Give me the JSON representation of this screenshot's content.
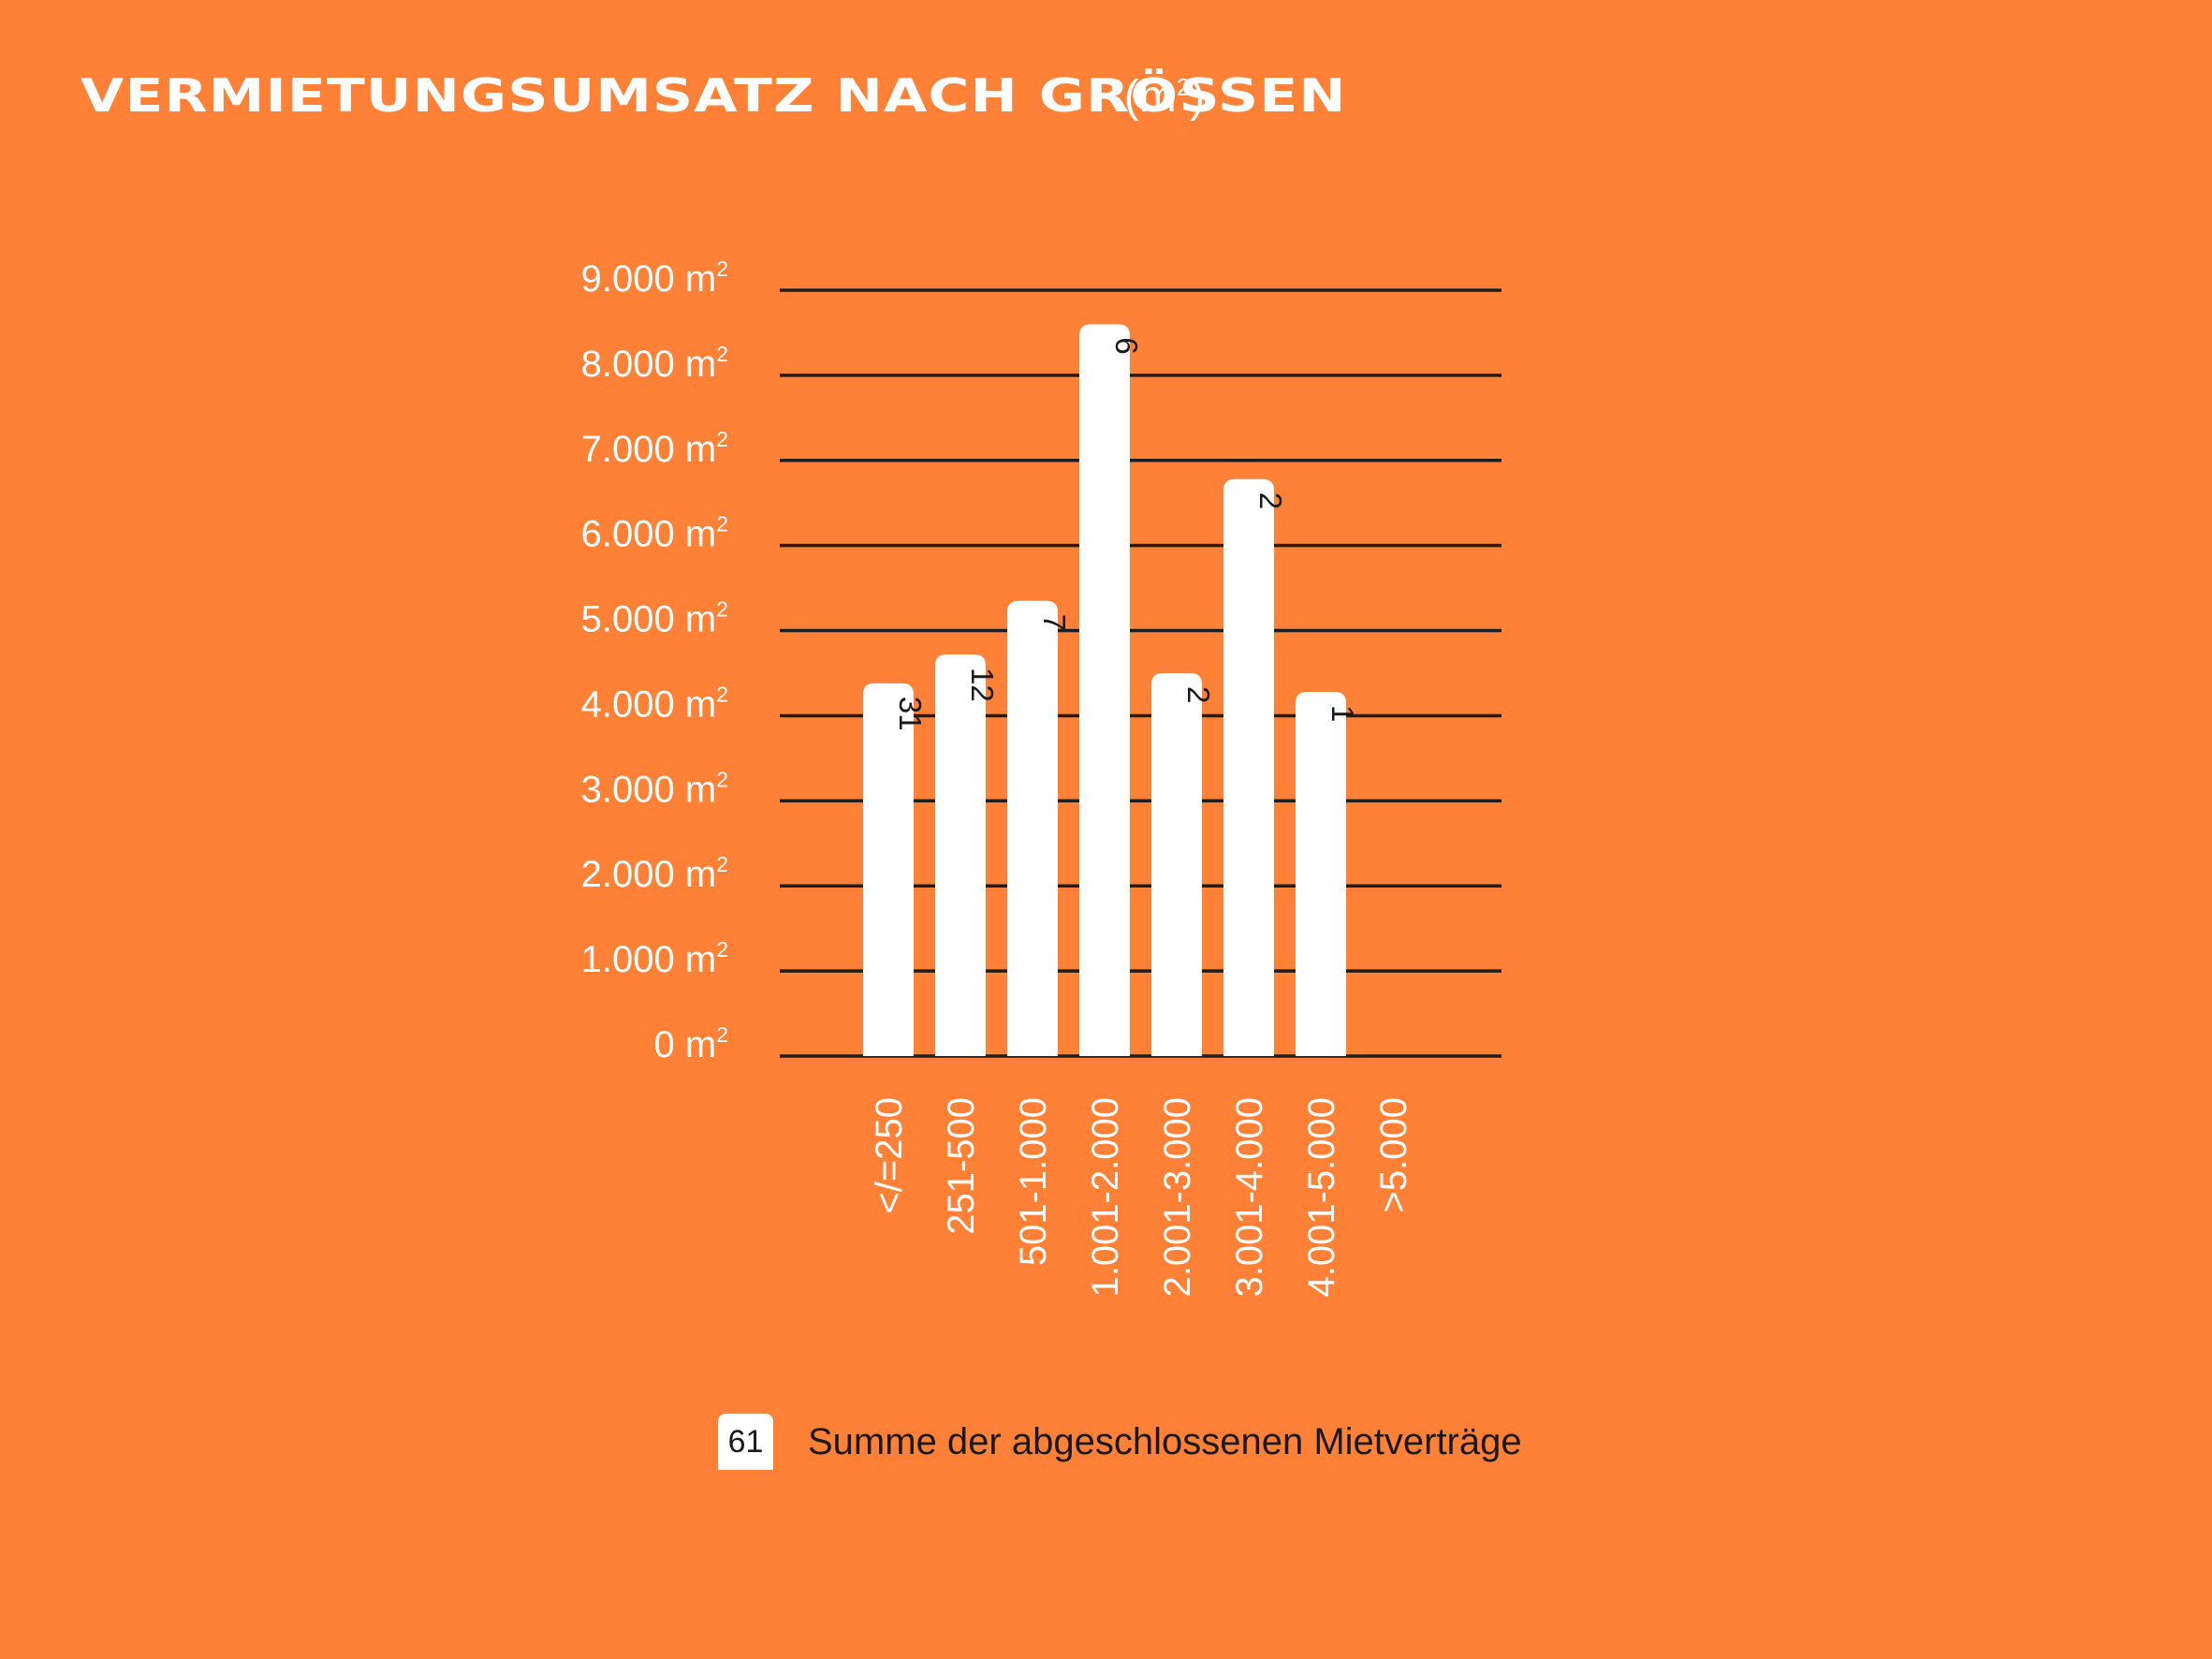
{
  "title": {
    "main": "VERMIETUNGSUMSATZ NACH GRÖSSEN",
    "unit_prefix": "(m",
    "unit_sup": "2",
    "unit_suffix": ")"
  },
  "legend": {
    "count": "61",
    "label": "Summe der abgeschlossenen Mietverträge"
  },
  "colors": {
    "background": "#ff8137",
    "bar": "#ffffff",
    "gridline": "#1e1e1e",
    "axis_text": "#ffffff",
    "dark_text": "#1a1a1a"
  },
  "chart_data": {
    "type": "bar",
    "title": "VERMIETUNGSUMSATZ NACH GRÖSSEN (m²)",
    "xlabel": "",
    "ylabel": "",
    "ylim": [
      0,
      9000
    ],
    "yticks": [
      {
        "value": 0,
        "label": "0 m",
        "sup": "2"
      },
      {
        "value": 1000,
        "label": "1.000 m",
        "sup": "2"
      },
      {
        "value": 2000,
        "label": "2.000 m",
        "sup": "2"
      },
      {
        "value": 3000,
        "label": "3.000 m",
        "sup": "2"
      },
      {
        "value": 4000,
        "label": "4.000 m",
        "sup": "2"
      },
      {
        "value": 5000,
        "label": "5.000 m",
        "sup": "2"
      },
      {
        "value": 6000,
        "label": "6.000 m",
        "sup": "2"
      },
      {
        "value": 7000,
        "label": "7.000 m",
        "sup": "2"
      },
      {
        "value": 8000,
        "label": "8.000 m",
        "sup": "2"
      },
      {
        "value": 9000,
        "label": "9.000 m",
        "sup": "2"
      }
    ],
    "grid": true,
    "categories": [
      "</=250",
      "251-500",
      "501-1.000",
      "1.001-2.000",
      "2.001-3.000",
      "3.001-4.000",
      "4.001-5.000",
      ">5.000"
    ],
    "values": [
      4380,
      4720,
      5350,
      8600,
      4500,
      6780,
      4280,
      0
    ],
    "data_labels": [
      "31",
      "12",
      "7",
      "6",
      "2",
      "2",
      "1",
      ""
    ]
  }
}
